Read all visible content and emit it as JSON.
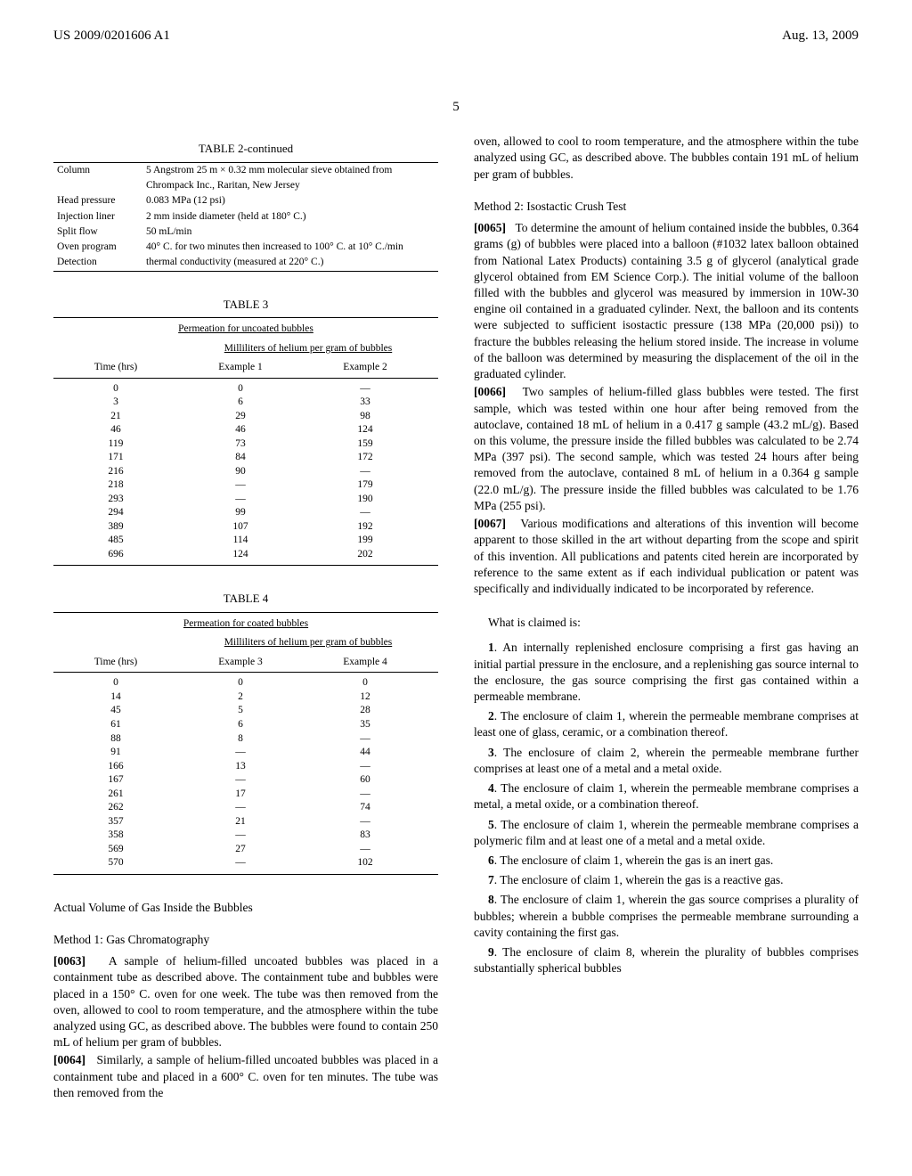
{
  "header": {
    "patent_number": "US 2009/0201606 A1",
    "date": "Aug. 13, 2009"
  },
  "page_number": "5",
  "table2": {
    "caption": "TABLE 2-continued",
    "rows": [
      {
        "k": "Column",
        "v": "5 Angstrom 25 m × 0.32 mm molecular sieve obtained from Chrompack Inc., Raritan, New Jersey"
      },
      {
        "k": "Head pressure",
        "v": "0.083 MPa (12 psi)"
      },
      {
        "k": "Injection liner",
        "v": "2 mm inside diameter (held at 180° C.)"
      },
      {
        "k": "Split flow",
        "v": "50 mL/min"
      },
      {
        "k": "Oven program",
        "v": "40° C. for two minutes then increased to 100° C. at 10° C./min"
      },
      {
        "k": "Detection",
        "v": "thermal conductivity (measured at 220° C.)"
      }
    ]
  },
  "table3": {
    "caption": "TABLE 3",
    "subtitle": "Permeation for uncoated bubbles",
    "subhead": "Milliliters of helium per gram of bubbles",
    "headers": [
      "Time (hrs)",
      "Example 1",
      "Example 2"
    ],
    "rows": [
      [
        "0",
        "0",
        "—"
      ],
      [
        "3",
        "6",
        "33"
      ],
      [
        "21",
        "29",
        "98"
      ],
      [
        "46",
        "46",
        "124"
      ],
      [
        "119",
        "73",
        "159"
      ],
      [
        "171",
        "84",
        "172"
      ],
      [
        "216",
        "90",
        "—"
      ],
      [
        "218",
        "—",
        "179"
      ],
      [
        "293",
        "—",
        "190"
      ],
      [
        "294",
        "99",
        "—"
      ],
      [
        "389",
        "107",
        "192"
      ],
      [
        "485",
        "114",
        "199"
      ],
      [
        "696",
        "124",
        "202"
      ]
    ]
  },
  "table4": {
    "caption": "TABLE 4",
    "subtitle": "Permeation for coated bubbles",
    "subhead": "Milliliters of helium per gram of bubbles",
    "headers": [
      "Time (hrs)",
      "Example 3",
      "Example 4"
    ],
    "rows": [
      [
        "0",
        "0",
        "0"
      ],
      [
        "14",
        "2",
        "12"
      ],
      [
        "45",
        "5",
        "28"
      ],
      [
        "61",
        "6",
        "35"
      ],
      [
        "88",
        "8",
        "—"
      ],
      [
        "91",
        "—",
        "44"
      ],
      [
        "166",
        "13",
        "—"
      ],
      [
        "167",
        "—",
        "60"
      ],
      [
        "261",
        "17",
        "—"
      ],
      [
        "262",
        "—",
        "74"
      ],
      [
        "357",
        "21",
        "—"
      ],
      [
        "358",
        "—",
        "83"
      ],
      [
        "569",
        "27",
        "—"
      ],
      [
        "570",
        "—",
        "102"
      ]
    ]
  },
  "left_headings": {
    "actual_volume": "Actual Volume of Gas Inside the Bubbles",
    "method1": "Method 1: Gas Chromatography"
  },
  "paras": {
    "p63_num": "[0063]",
    "p63": "A sample of helium-filled uncoated bubbles was placed in a containment tube as described above. The containment tube and bubbles were placed in a 150° C. oven for one week. The tube was then removed from the oven, allowed to cool to room temperature, and the atmosphere within the tube analyzed using GC, as described above. The bubbles were found to contain 250 mL of helium per gram of bubbles.",
    "p64_num": "[0064]",
    "p64": "Similarly, a sample of helium-filled uncoated bubbles was placed in a containment tube and placed in a 600° C. oven for ten minutes. The tube was then removed from the",
    "p64_cont": "oven, allowed to cool to room temperature, and the atmosphere within the tube analyzed using GC, as described above. The bubbles contain 191 mL of helium per gram of bubbles.",
    "method2": "Method 2: Isostactic Crush Test",
    "p65_num": "[0065]",
    "p65": "To determine the amount of helium contained inside the bubbles, 0.364 grams (g) of bubbles were placed into a balloon (#1032 latex balloon obtained from National Latex Products) containing 3.5 g of glycerol (analytical grade glycerol obtained from EM Science Corp.). The initial volume of the balloon filled with the bubbles and glycerol was measured by immersion in 10W-30 engine oil contained in a graduated cylinder. Next, the balloon and its contents were subjected to sufficient isostactic pressure (138 MPa (20,000 psi)) to fracture the bubbles releasing the helium stored inside. The increase in volume of the balloon was determined by measuring the displacement of the oil in the graduated cylinder.",
    "p66_num": "[0066]",
    "p66": "Two samples of helium-filled glass bubbles were tested. The first sample, which was tested within one hour after being removed from the autoclave, contained 18 mL of helium in a 0.417 g sample (43.2 mL/g). Based on this volume, the pressure inside the filled bubbles was calculated to be 2.74 MPa (397 psi). The second sample, which was tested 24 hours after being removed from the autoclave, contained 8 mL of helium in a 0.364 g sample (22.0 mL/g). The pressure inside the filled bubbles was calculated to be 1.76 MPa (255 psi).",
    "p67_num": "[0067]",
    "p67": "Various modifications and alterations of this invention will become apparent to those skilled in the art without departing from the scope and spirit of this invention. All publications and patents cited herein are incorporated by reference to the same extent as if each individual publication or patent was specifically and individually indicated to be incorporated by reference."
  },
  "claims_intro": "What is claimed is:",
  "claims": [
    {
      "n": "1",
      "t": ". An internally replenished enclosure comprising a first gas having an initial partial pressure in the enclosure, and a replenishing gas source internal to the enclosure, the gas source comprising the first gas contained within a permeable membrane."
    },
    {
      "n": "2",
      "t": ". The enclosure of claim 1, wherein the permeable membrane comprises at least one of glass, ceramic, or a combination thereof."
    },
    {
      "n": "3",
      "t": ". The enclosure of claim 2, wherein the permeable membrane further comprises at least one of a metal and a metal oxide."
    },
    {
      "n": "4",
      "t": ". The enclosure of claim 1, wherein the permeable membrane comprises a metal, a metal oxide, or a combination thereof."
    },
    {
      "n": "5",
      "t": ". The enclosure of claim 1, wherein the permeable membrane comprises a polymeric film and at least one of a metal and a metal oxide."
    },
    {
      "n": "6",
      "t": ". The enclosure of claim 1, wherein the gas is an inert gas."
    },
    {
      "n": "7",
      "t": ". The enclosure of claim 1, wherein the gas is a reactive gas."
    },
    {
      "n": "8",
      "t": ". The enclosure of claim 1, wherein the gas source comprises a plurality of bubbles; wherein a bubble comprises the permeable membrane surrounding a cavity containing the first gas."
    },
    {
      "n": "9",
      "t": ". The enclosure of claim 8, wherein the plurality of bubbles comprises substantially spherical bubbles"
    }
  ]
}
